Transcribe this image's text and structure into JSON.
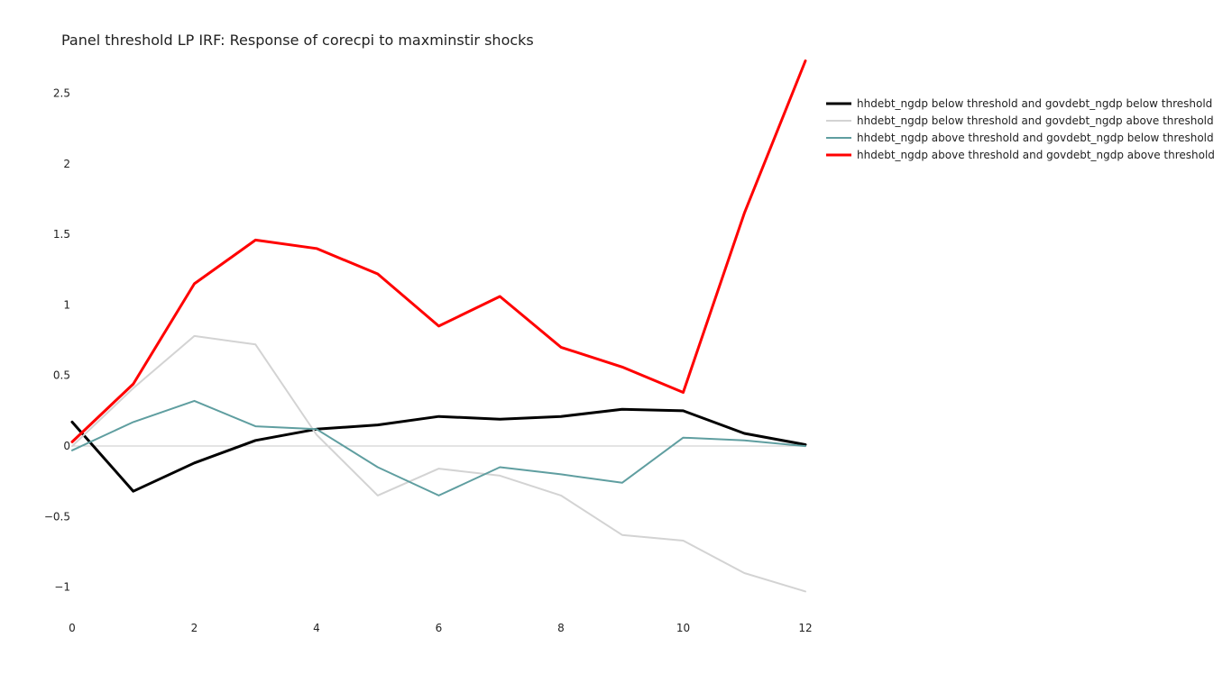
{
  "chart_data": {
    "type": "line",
    "title": "Panel threshold LP IRF: Response of corecpi to maxminstir shocks",
    "xlabel": "",
    "ylabel": "",
    "x": [
      0,
      1,
      2,
      3,
      4,
      5,
      6,
      7,
      8,
      9,
      10,
      11,
      12
    ],
    "xlim": [
      0,
      12
    ],
    "ylim": [
      -1.2,
      2.65
    ],
    "x_ticks": [
      0,
      2,
      4,
      6,
      8,
      10,
      12
    ],
    "x_tick_labels": [
      "0",
      "2",
      "4",
      "6",
      "8",
      "10",
      "12"
    ],
    "y_ticks": [
      -1,
      -0.5,
      0,
      0.5,
      1,
      1.5,
      2,
      2.5
    ],
    "y_tick_labels": [
      "−1",
      "−0.5",
      "0",
      "0.5",
      "1",
      "1.5",
      "2",
      "2.5"
    ],
    "zero_line": true,
    "grid": false,
    "legend_position": "top-right, outside plot",
    "series": [
      {
        "name": "hhdebt_ngdp below threshold and govdebt_ngdp below threshold",
        "color": "#000000",
        "width": "thick",
        "values": [
          0.17,
          -0.32,
          -0.12,
          0.04,
          0.12,
          0.15,
          0.21,
          0.19,
          0.21,
          0.26,
          0.25,
          0.09,
          0.01
        ]
      },
      {
        "name": "hhdebt_ngdp below threshold and govdebt_ngdp above threshold",
        "color": "#d3d3d3",
        "width": "thin",
        "values": [
          0.0,
          0.41,
          0.78,
          0.72,
          0.08,
          -0.35,
          -0.16,
          -0.21,
          -0.35,
          -0.63,
          -0.67,
          -0.9,
          -1.03
        ]
      },
      {
        "name": "hhdebt_ngdp above threshold and govdebt_ngdp below threshold",
        "color": "#5f9ea0",
        "width": "thin",
        "values": [
          -0.03,
          0.17,
          0.32,
          0.14,
          0.12,
          -0.15,
          -0.35,
          -0.15,
          -0.2,
          -0.26,
          0.06,
          0.04,
          0.0
        ]
      },
      {
        "name": "hhdebt_ngdp above threshold and govdebt_ngdp above threshold",
        "color": "#ff0000",
        "width": "thick",
        "values": [
          0.03,
          0.44,
          1.15,
          1.46,
          1.4,
          1.22,
          0.85,
          1.06,
          0.7,
          0.56,
          0.38,
          1.65,
          2.73
        ]
      }
    ]
  }
}
